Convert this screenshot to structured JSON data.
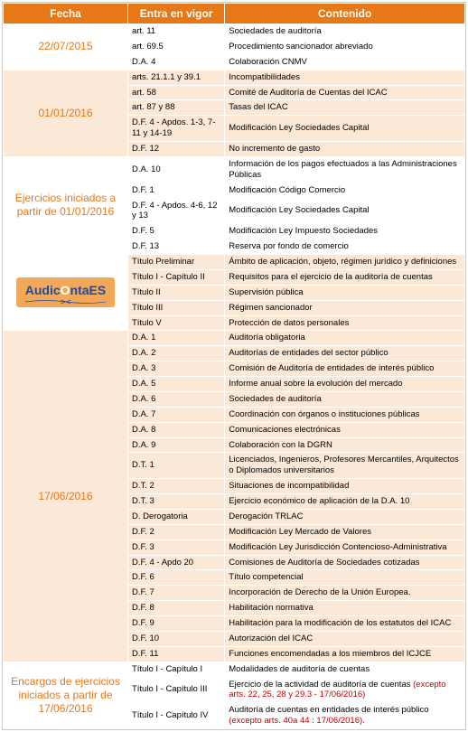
{
  "header": {
    "fecha": "Fecha",
    "vigor": "Entra en vigor",
    "contenido": "Contenido"
  },
  "logo": {
    "pre": "Audic",
    "o": "O",
    "post": "ntaES"
  },
  "groups": [
    {
      "fecha": "22/07/2015",
      "logo": false,
      "shade": "a",
      "rows": [
        {
          "v": "art. 11",
          "c": "Sociedades de auditoría"
        },
        {
          "v": "art. 69.5",
          "c": "Procedimiento sancionador abreviado"
        },
        {
          "v": "D.A. 4",
          "c": "Colaboración CNMV"
        }
      ]
    },
    {
      "fecha": "01/01/2016",
      "logo": false,
      "shade": "b",
      "rows": [
        {
          "v": "arts. 21.1.1 y 39.1",
          "c": "Incompatibilidades"
        },
        {
          "v": "art. 58",
          "c": "Comité de Auditoría de Cuentas del ICAC"
        },
        {
          "v": "art. 87 y 88",
          "c": "Tasas del ICAC"
        },
        {
          "v": "D.F. 4 - Apdos. 1-3, 7-11 y 14-19",
          "c": "Modificación Ley Sociedades Capital"
        },
        {
          "v": "D.F. 12",
          "c": "No incremento de gasto"
        }
      ]
    },
    {
      "fecha": "Ejercicios iniciados a partir de 01/01/2016",
      "logo": false,
      "shade": "a",
      "rows": [
        {
          "v": "D.A. 10",
          "c": "Información de los pagos efectuados a las Administraciones Públicas"
        },
        {
          "v": "D.F. 1",
          "c": "Modificación Código Comercio"
        },
        {
          "v": "D.F. 4 - Apdos. 4-6, 12 y 13",
          "c": "Modificación Ley Sociedades Capital"
        },
        {
          "v": "D.F. 5",
          "c": "Modificación Ley Impuesto Sociedades"
        },
        {
          "v": "D.F. 13",
          "c": "Reserva por fondo de comercio"
        }
      ]
    },
    {
      "fecha": "17/06/2016",
      "logo": true,
      "shade": "b",
      "rows": [
        {
          "v": "Título Preliminar",
          "c": "Ámbito de aplicación, objeto, régimen jurídico y definiciones"
        },
        {
          "v": "Título I - Capítulo II",
          "c": "Requisitos para el ejercicio de la auditoría de cuentas"
        },
        {
          "v": "Título II",
          "c": "Supervisión pública"
        },
        {
          "v": "Título III",
          "c": "Régimen sancionador"
        },
        {
          "v": "Título V",
          "c": "Protección de datos personales"
        },
        {
          "v": "D.A. 1",
          "c": "Auditoría obligatoria"
        },
        {
          "v": "D.A. 2",
          "c": "Auditorías de entidades del sector público"
        },
        {
          "v": "D.A. 3",
          "c": "Comisión de Auditoría de entidades de interés público"
        },
        {
          "v": "D.A. 5",
          "c": "Informe anual sobre la evolución del mercado"
        },
        {
          "v": "D.A. 6",
          "c": "Sociedades de auditoría"
        },
        {
          "v": "D.A. 7",
          "c": "Coordinación con órganos o instituciones públicas"
        },
        {
          "v": "D.A. 8",
          "c": "Comunicaciones electrónicas"
        },
        {
          "v": "D.A. 9",
          "c": "Colaboración con la DGRN"
        },
        {
          "v": "D.T. 1",
          "c": "Licenciados, Ingenieros, Profesores Mercantiles, Arquitectos o Diplomados universitarios"
        },
        {
          "v": "D.T. 2",
          "c": "Situaciones de incompatibilidad"
        },
        {
          "v": "D.T. 3",
          "c": "Ejercicio económico de aplicación de la D.A. 10"
        },
        {
          "v": "D. Derogatoria",
          "c": "Derogación TRLAC"
        },
        {
          "v": "D.F. 2",
          "c": "Modificación Ley Mercado de Valores"
        },
        {
          "v": "D.F. 3",
          "c": "Modificación Ley Jurisdicción Contencioso-Administrativa"
        },
        {
          "v": "D.F. 4 - Apdo 20",
          "c": "Comisiones de Auditoría de Sociedades cotizadas"
        },
        {
          "v": "D.F. 6",
          "c": "Título competencial"
        },
        {
          "v": "D.F. 7",
          "c": "Incorporación de Derecho de la Unión Europea."
        },
        {
          "v": "D.F. 8",
          "c": "Habilitación normativa"
        },
        {
          "v": "D.F. 9",
          "c": "Habilitación para la modificación de los estatutos del ICAC"
        },
        {
          "v": "D.F. 10",
          "c": "Autorización del ICAC"
        },
        {
          "v": "D.F. 11",
          "c": "Funciones encomendadas a los miembros del ICJCE"
        }
      ]
    },
    {
      "fecha": "Encargos de ejercicios iniciados a partir de 17/06/2016",
      "logo": false,
      "shade": "a",
      "rows": [
        {
          "v": "Título I - Capítulo I",
          "c": "Modalidades de auditoría de cuentas",
          "ex": ""
        },
        {
          "v": "Título I - Capítulo III",
          "c": "Ejercicio de la actividad de auditoría de cuentas ",
          "ex": "(excepto arts. 22, 25, 28 y 29.3 - 17/06/2016)"
        },
        {
          "v": "Título I - Capítulo IV",
          "c": "Auditoría de cuentas en entidades de interés público ",
          "ex": "(excepto arts. 40a 44 : 17/06/2016)."
        }
      ]
    }
  ],
  "colwidths": {
    "fecha": "27%",
    "vigor": "21%",
    "cont": "52%"
  }
}
